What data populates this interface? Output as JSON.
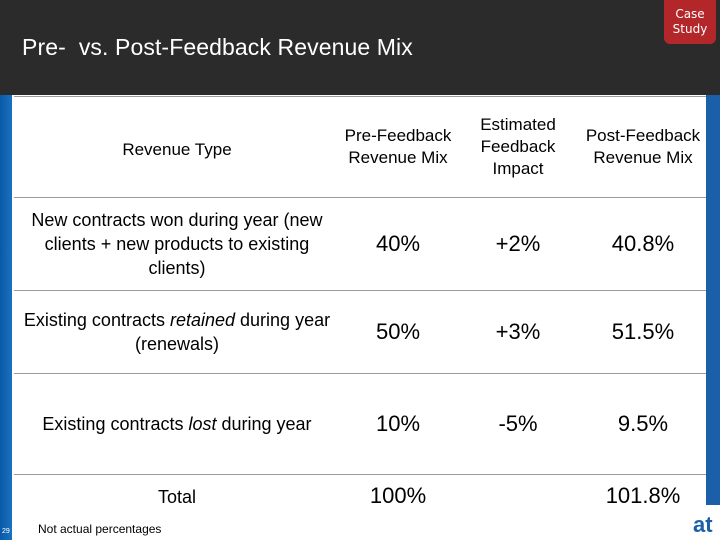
{
  "header": {
    "title": "Pre-  vs. Post-Feedback Revenue Mix",
    "badge_line1": "Case",
    "badge_line2": "Study"
  },
  "table": {
    "headers": {
      "type": "Revenue Type",
      "pre": "Pre-Feedback Revenue Mix",
      "impact": "Estimated Feedback Impact",
      "post": "Post-Feedback Revenue Mix"
    },
    "rows": [
      {
        "label": "New contracts won during year (new clients + new products to existing clients)",
        "pre": "40%",
        "impact": "+2%",
        "post": "40.8%"
      },
      {
        "label_before": "Existing contracts ",
        "label_emph": "retained",
        "label_after": " during year (renewals)",
        "pre": "50%",
        "impact": "+3%",
        "post": "51.5%"
      },
      {
        "label_before": "Existing contracts ",
        "label_emph": "lost",
        "label_after": " during year",
        "pre": "10%",
        "impact": "-5%",
        "post": "9.5%"
      },
      {
        "label": "Total",
        "pre": "100%",
        "impact": "",
        "post": "101.8%"
      }
    ]
  },
  "footnote": "Not actual percentages",
  "slide_number": "29",
  "logo_fragment": "at"
}
